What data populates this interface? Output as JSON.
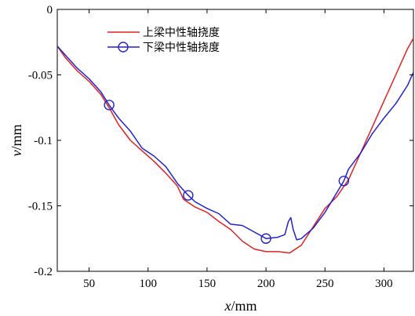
{
  "chart_data": {
    "type": "line",
    "xlabel_var": "x",
    "xlabel_unit": "/mm",
    "ylabel_var": "v",
    "ylabel_unit": "/mm",
    "xlim": [
      23,
      325
    ],
    "ylim": [
      -0.2,
      0
    ],
    "xticks": [
      50,
      100,
      150,
      200,
      250,
      300
    ],
    "xtick_labels": [
      "50",
      "100",
      "150",
      "200",
      "250",
      "300"
    ],
    "yticks": [
      0,
      -0.05,
      -0.1,
      -0.15,
      -0.2
    ],
    "ytick_labels": [
      "0",
      "-0.05",
      "-0.1",
      "-0.15",
      "-0.2"
    ],
    "grid": false,
    "legend_position": "top-left",
    "series": [
      {
        "name": "上梁中性轴挠度",
        "color": "#dd2222",
        "marker": "none",
        "x": [
          23,
          30,
          40,
          50,
          60,
          67,
          75,
          85,
          95,
          105,
          115,
          125,
          130,
          140,
          150,
          160,
          170,
          180,
          190,
          200,
          210,
          220,
          230,
          240,
          250,
          260,
          270,
          280,
          290,
          300,
          310,
          320,
          325
        ],
        "y": [
          -0.028,
          -0.037,
          -0.047,
          -0.055,
          -0.065,
          -0.075,
          -0.088,
          -0.1,
          -0.108,
          -0.116,
          -0.125,
          -0.135,
          -0.145,
          -0.151,
          -0.155,
          -0.162,
          -0.168,
          -0.177,
          -0.183,
          -0.185,
          -0.185,
          -0.186,
          -0.18,
          -0.166,
          -0.152,
          -0.143,
          -0.13,
          -0.11,
          -0.09,
          -0.07,
          -0.05,
          -0.03,
          -0.022
        ]
      },
      {
        "name": "下梁中性轴挠度",
        "color": "#2222cc",
        "marker": "circle",
        "marker_x": [
          67,
          134,
          200,
          266
        ],
        "marker_y": [
          -0.073,
          -0.142,
          -0.175,
          -0.131
        ],
        "x": [
          23,
          30,
          40,
          50,
          60,
          67,
          75,
          85,
          95,
          105,
          115,
          125,
          134,
          140,
          150,
          160,
          170,
          180,
          190,
          200,
          210,
          216,
          219,
          221,
          223,
          226,
          230,
          240,
          250,
          260,
          266,
          270,
          280,
          290,
          300,
          310,
          320,
          325
        ],
        "y": [
          -0.028,
          -0.035,
          -0.045,
          -0.053,
          -0.063,
          -0.073,
          -0.083,
          -0.093,
          -0.106,
          -0.112,
          -0.12,
          -0.133,
          -0.142,
          -0.147,
          -0.152,
          -0.156,
          -0.164,
          -0.165,
          -0.17,
          -0.175,
          -0.174,
          -0.172,
          -0.162,
          -0.159,
          -0.168,
          -0.176,
          -0.175,
          -0.167,
          -0.155,
          -0.14,
          -0.131,
          -0.122,
          -0.11,
          -0.095,
          -0.083,
          -0.072,
          -0.058,
          -0.048
        ]
      }
    ]
  }
}
